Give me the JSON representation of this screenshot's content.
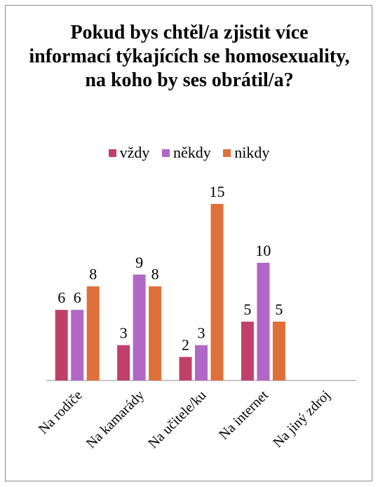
{
  "chart_data": {
    "type": "bar",
    "title": "Pokud bys chtěl/a zjistit více informací týkajících se homosexuality, na koho by ses obrátil/a?",
    "categories": [
      "Na rodiče",
      "Na kamarády",
      "Na učitele/ku",
      "Na internet",
      "Na jiný zdroj"
    ],
    "series": [
      {
        "name": "vždy",
        "color": "#c0406a",
        "values": [
          6,
          3,
          2,
          5,
          0
        ]
      },
      {
        "name": "někdy",
        "color": "#b067c6",
        "values": [
          6,
          9,
          3,
          10,
          0
        ]
      },
      {
        "name": "nikdy",
        "color": "#e0703a",
        "values": [
          8,
          8,
          15,
          5,
          0
        ]
      }
    ],
    "data_labels": true,
    "ylim": [
      0,
      16
    ],
    "legend_position": "top",
    "grid": false
  }
}
